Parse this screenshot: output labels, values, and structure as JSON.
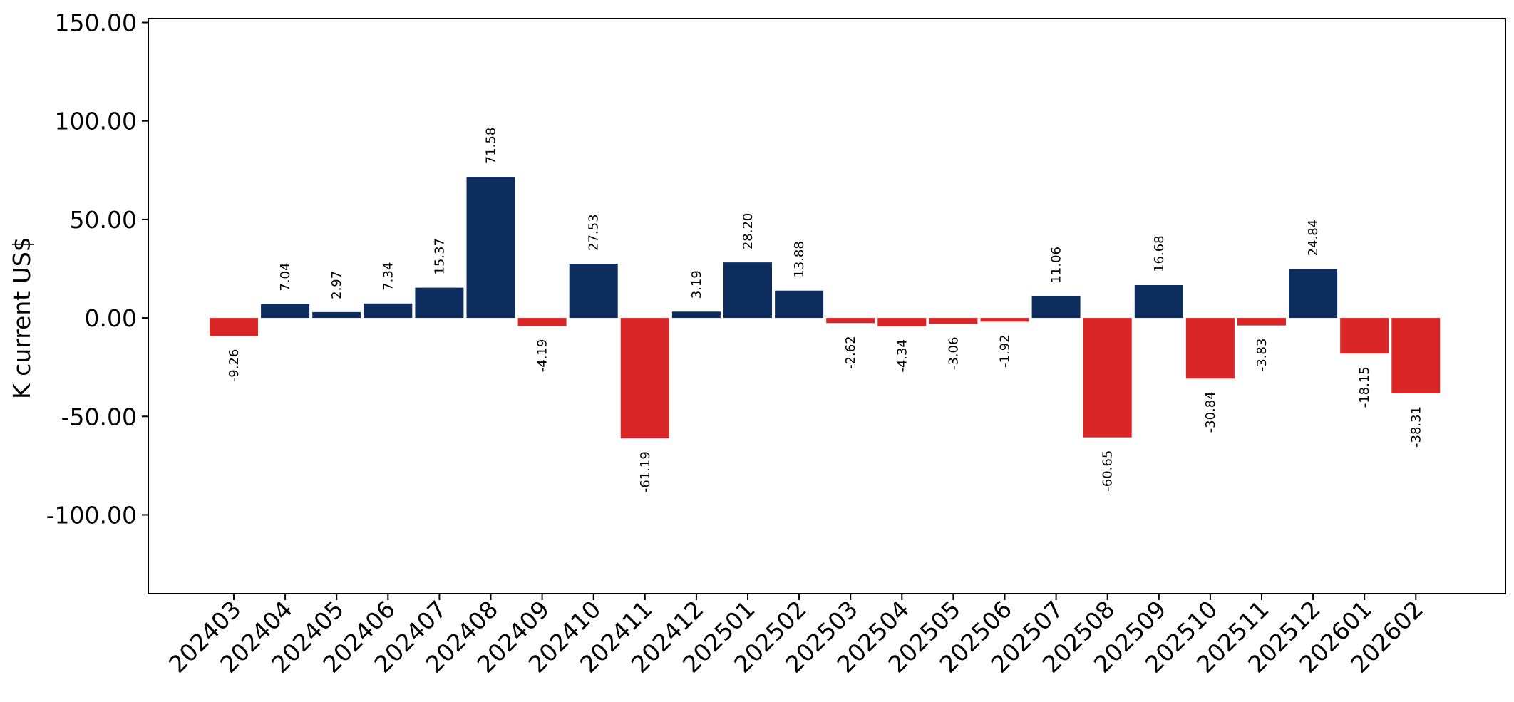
{
  "chart_data": {
    "type": "bar",
    "title": "",
    "xlabel": "",
    "ylabel": "K current US$",
    "ylim": [
      -140,
      152
    ],
    "yticks": [
      -100,
      -50,
      0,
      50,
      100,
      150
    ],
    "ytick_labels": [
      "-100.00",
      "-50.00",
      "0.00",
      "50.00",
      "100.00",
      "150.00"
    ],
    "grid": false,
    "legend": "none",
    "colors": {
      "positive": "#0d2d5e",
      "negative": "#db2627"
    },
    "categories": [
      "202403",
      "202404",
      "202405",
      "202406",
      "202407",
      "202408",
      "202409",
      "202410",
      "202411",
      "202412",
      "202501",
      "202502",
      "202503",
      "202504",
      "202505",
      "202506",
      "202507",
      "202508",
      "202509",
      "202510",
      "202511",
      "202512",
      "202601",
      "202602"
    ],
    "values": [
      -9.26,
      7.04,
      2.97,
      7.34,
      15.37,
      71.58,
      -4.19,
      27.53,
      -61.19,
      3.19,
      28.2,
      13.88,
      -2.62,
      -4.34,
      -3.06,
      -1.92,
      11.06,
      -60.65,
      16.68,
      -30.84,
      -3.83,
      24.84,
      -18.15,
      -38.31
    ],
    "data_labels": [
      "-9.26",
      "7.04",
      "2.97",
      "7.34",
      "15.37",
      "71.58",
      "-4.19",
      "27.53",
      "-61.19",
      "3.19",
      "28.20",
      "13.88",
      "-2.62",
      "-4.34",
      "-3.06",
      "-1.92",
      "11.06",
      "-60.65",
      "16.68",
      "-30.84",
      "-3.83",
      "24.84",
      "-18.15",
      "-38.31"
    ]
  }
}
